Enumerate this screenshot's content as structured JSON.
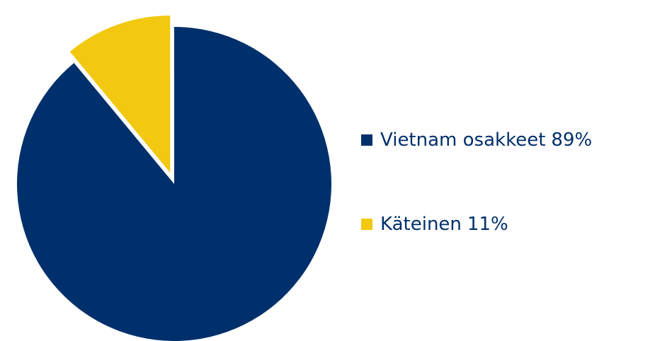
{
  "chart_data": {
    "type": "pie",
    "categories": [
      "Vietnam osakkeet",
      "Käteinen"
    ],
    "values": [
      89,
      11
    ],
    "value_labels": [
      "89%",
      "11%"
    ],
    "colors": [
      "#00306b",
      "#f2c811"
    ]
  }
}
